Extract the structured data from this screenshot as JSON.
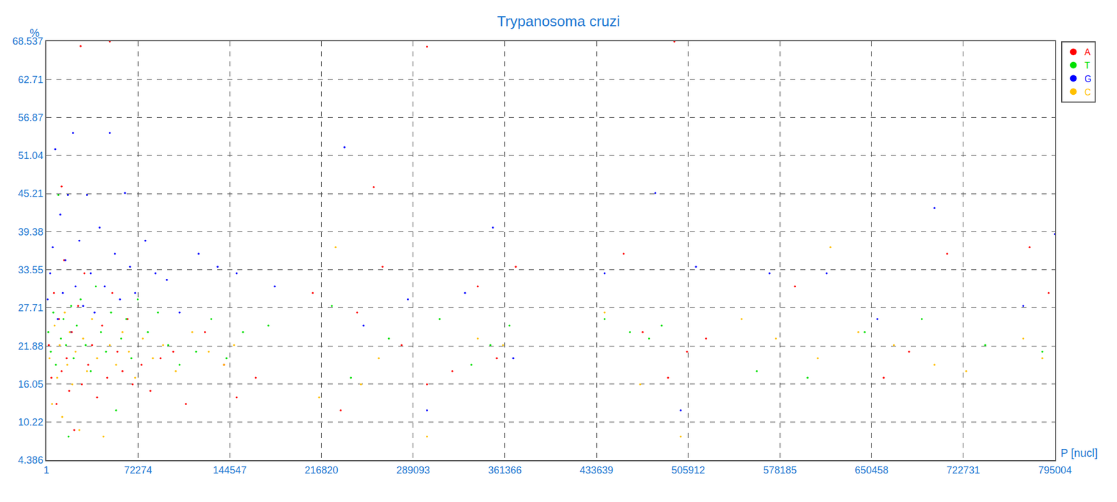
{
  "chart_data": {
    "type": "scatter",
    "title": "Trypanosoma cruzi",
    "x_label": "P [nucl]",
    "y_label": "%",
    "xlim": [
      1,
      795004
    ],
    "ylim": [
      4.386,
      68.537
    ],
    "xticks": [
      1,
      72274,
      144547,
      216820,
      289093,
      361366,
      433639,
      505912,
      578185,
      650458,
      722731,
      795004
    ],
    "yticks": [
      4.386,
      10.22,
      16.05,
      21.88,
      27.71,
      33.55,
      39.38,
      45.21,
      51.04,
      56.87,
      62.71,
      68.537
    ],
    "grid": true,
    "legend": "right",
    "marker": "circle",
    "series": [
      {
        "name": "A",
        "color": "#ff0000",
        "x": [
          2000,
          4000,
          6000,
          8000,
          10000,
          12000,
          14000,
          16000,
          18000,
          20000,
          22000,
          25000,
          28000,
          30000,
          33000,
          36000,
          40000,
          44000,
          48000,
          52000,
          56000,
          60000,
          64000,
          68000,
          75000,
          82000,
          90000,
          100000,
          110000,
          125000,
          140000,
          150000,
          165000,
          210000,
          232000,
          245000,
          258000,
          265000,
          280000,
          300000,
          320000,
          340000,
          355000,
          370000,
          455000,
          470000,
          490000,
          505000,
          520000,
          590000,
          660000,
          680000,
          710000,
          775000,
          790000,
          27000,
          50000,
          300000,
          495000,
          12000
        ],
        "values": [
          22,
          17,
          30,
          13,
          26,
          18,
          35,
          20,
          15,
          24,
          9,
          28,
          16,
          33,
          19,
          22,
          14,
          25,
          17,
          30,
          21,
          18,
          26,
          16,
          19,
          15,
          20,
          21,
          13,
          24,
          19,
          14,
          17,
          30,
          12,
          27,
          46.2,
          34,
          22,
          16,
          18,
          31,
          20,
          34,
          36,
          24,
          17,
          21,
          23,
          31,
          17,
          21,
          36,
          37,
          30,
          67.8,
          68.5,
          67.7,
          68.5,
          46.3
        ]
      },
      {
        "name": "T",
        "color": "#00e000",
        "x": [
          1500,
          3500,
          5500,
          7500,
          9500,
          11500,
          13500,
          15500,
          17500,
          19500,
          21500,
          24000,
          27000,
          31000,
          35000,
          39000,
          43000,
          47000,
          51000,
          55000,
          59000,
          63000,
          67000,
          72000,
          80000,
          88000,
          96000,
          105000,
          118000,
          130000,
          142000,
          155000,
          175000,
          225000,
          240000,
          270000,
          310000,
          335000,
          350000,
          365000,
          440000,
          460000,
          475000,
          485000,
          560000,
          600000,
          645000,
          690000,
          740000,
          785000
        ],
        "values": [
          24,
          21,
          27,
          19,
          45,
          23,
          26,
          22,
          8,
          28,
          20,
          25,
          29,
          22,
          18,
          31,
          24,
          21,
          27,
          12,
          23,
          26,
          20,
          29,
          24,
          27,
          22,
          19,
          21,
          26,
          20,
          24,
          25,
          28,
          17,
          23,
          26,
          19,
          22,
          25,
          26,
          24,
          23,
          25,
          18,
          17,
          24,
          26,
          22,
          21
        ]
      },
      {
        "name": "G",
        "color": "#0000ff",
        "x": [
          1000,
          3000,
          5000,
          7000,
          9000,
          11000,
          13000,
          15000,
          17000,
          19000,
          21000,
          23000,
          26000,
          29000,
          32000,
          35000,
          38000,
          42000,
          46000,
          50000,
          54000,
          58000,
          62000,
          66000,
          70000,
          78000,
          86000,
          95000,
          105000,
          120000,
          135000,
          150000,
          180000,
          235000,
          250000,
          285000,
          300000,
          330000,
          352000,
          368000,
          440000,
          480000,
          500000,
          512000,
          570000,
          615000,
          655000,
          700000,
          770000,
          795004
        ],
        "values": [
          29,
          33,
          37,
          52,
          26,
          42,
          30,
          35,
          45,
          24,
          54.5,
          31,
          38,
          28,
          45,
          33,
          27,
          40,
          31,
          54.5,
          36,
          29,
          45.3,
          34,
          30,
          38,
          33,
          32,
          27,
          36,
          34,
          33,
          31,
          52.3,
          25,
          29,
          12,
          30,
          40,
          20,
          33,
          45.3,
          12,
          34,
          33,
          33,
          26,
          43,
          28,
          39
        ]
      },
      {
        "name": "C",
        "color": "#ffc000",
        "x": [
          2500,
          4500,
          6500,
          8500,
          10500,
          12500,
          14500,
          16500,
          18500,
          20500,
          23000,
          26000,
          29000,
          32000,
          36000,
          40000,
          45000,
          50000,
          55000,
          60000,
          65000,
          70000,
          76000,
          84000,
          92000,
          102000,
          115000,
          128000,
          140000,
          148000,
          215000,
          228000,
          248000,
          262000,
          300000,
          340000,
          360000,
          440000,
          468000,
          500000,
          548000,
          575000,
          608000,
          640000,
          668000,
          700000,
          725000,
          770000,
          785000,
          618000
        ],
        "values": [
          20,
          13,
          25,
          17,
          22,
          11,
          27,
          19,
          24,
          16,
          21,
          9,
          23,
          18,
          26,
          20,
          8,
          22,
          19,
          24,
          21,
          17,
          23,
          20,
          22,
          18,
          24,
          21,
          19,
          22,
          14,
          37,
          16,
          20,
          8,
          23,
          22,
          27,
          16,
          8,
          26,
          23,
          20,
          24,
          22,
          19,
          18,
          23,
          20,
          37
        ]
      }
    ]
  }
}
